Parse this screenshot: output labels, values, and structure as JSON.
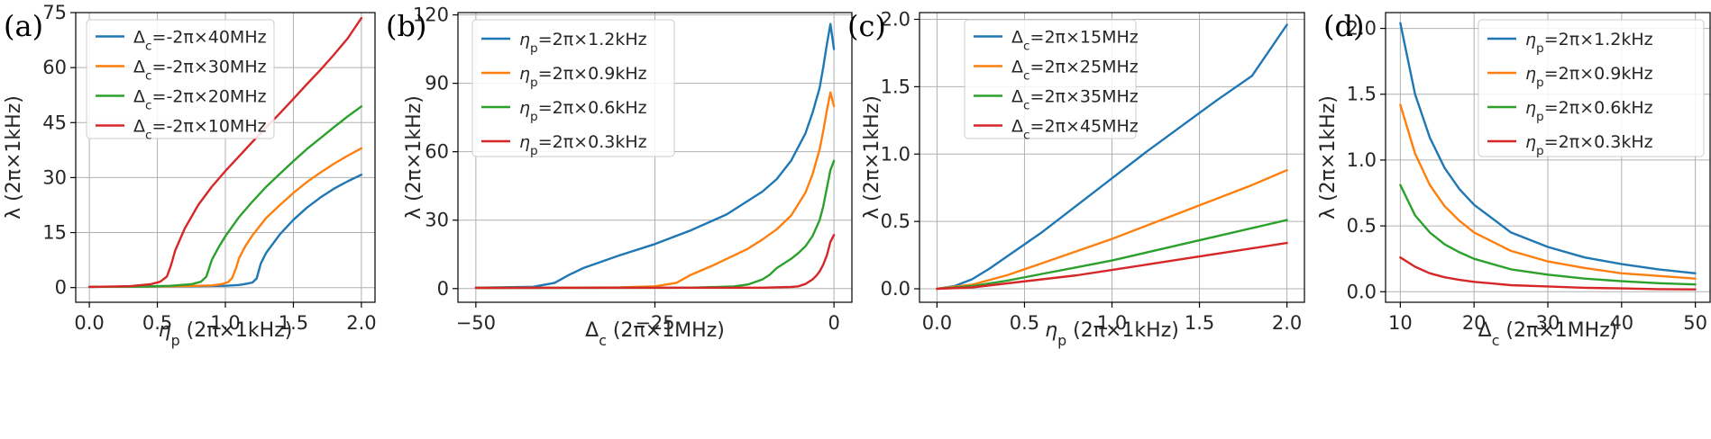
{
  "chart_data": [
    {
      "type": "line",
      "panel_label": "(a)",
      "xlabel_symbol": "η",
      "xlabel_sub": "p",
      "xlabel_rest": " (2π×1kHz)",
      "ylabel": "λ (2π×1kHz)",
      "xlim": [
        -0.1,
        2.1
      ],
      "ylim": [
        -4,
        75
      ],
      "xticks": [
        0.0,
        0.5,
        1.0,
        1.5,
        2.0
      ],
      "xtick_labels": [
        "0.0",
        "0.5",
        "1.0",
        "1.5",
        "2.0"
      ],
      "yticks": [
        0,
        15,
        30,
        45,
        60,
        75
      ],
      "ytick_labels": [
        "0",
        "15",
        "30",
        "45",
        "60",
        "75"
      ],
      "grid": true,
      "legend_position": "upper-left",
      "series": [
        {
          "name": "Δc=-2π×40MHz",
          "legend_symbol": "Δ",
          "legend_sub": "c",
          "legend_rest": "=-2π×40MHz",
          "color": "#1f77b4",
          "x": [
            0,
            0.4,
            0.8,
            1.0,
            1.1,
            1.15,
            1.2,
            1.23,
            1.26,
            1.3,
            1.4,
            1.5,
            1.6,
            1.7,
            1.8,
            1.9,
            2.0
          ],
          "y": [
            0.2,
            0.3,
            0.4,
            0.5,
            0.7,
            1.0,
            1.4,
            2.5,
            6.5,
            9.5,
            14.5,
            18.5,
            21.8,
            24.6,
            27.0,
            29.0,
            30.8
          ]
        },
        {
          "name": "Δc=-2π×30MHz",
          "legend_symbol": "Δ",
          "legend_sub": "c",
          "legend_rest": "=-2π×30MHz",
          "color": "#ff7f0e",
          "x": [
            0,
            0.4,
            0.7,
            0.9,
            0.97,
            1.02,
            1.05,
            1.08,
            1.1,
            1.15,
            1.2,
            1.3,
            1.4,
            1.5,
            1.6,
            1.7,
            1.8,
            1.9,
            2.0
          ],
          "y": [
            0.2,
            0.3,
            0.4,
            0.6,
            0.9,
            1.5,
            2.6,
            5.5,
            8.0,
            11.5,
            14.3,
            19.0,
            22.5,
            25.8,
            28.8,
            31.4,
            33.8,
            36.0,
            38.0
          ]
        },
        {
          "name": "Δc=-2π×20MHz",
          "legend_symbol": "Δ",
          "legend_sub": "c",
          "legend_rest": "=-2π×20MHz",
          "color": "#2ca02c",
          "x": [
            0,
            0.4,
            0.6,
            0.75,
            0.82,
            0.86,
            0.9,
            0.95,
            1.0,
            1.1,
            1.2,
            1.3,
            1.4,
            1.5,
            1.6,
            1.7,
            1.8,
            1.9,
            2.0
          ],
          "y": [
            0.2,
            0.3,
            0.5,
            0.9,
            1.6,
            3.0,
            7.5,
            11.0,
            14.0,
            19.2,
            23.5,
            27.5,
            31.0,
            34.5,
            37.8,
            40.8,
            43.8,
            46.7,
            49.4
          ]
        },
        {
          "name": "Δc=-2π×10MHz",
          "legend_symbol": "Δ",
          "legend_sub": "c",
          "legend_rest": "=-2π×10MHz",
          "color": "#d62728",
          "x": [
            0,
            0.3,
            0.45,
            0.52,
            0.57,
            0.6,
            0.63,
            0.7,
            0.8,
            0.9,
            1.0,
            1.1,
            1.2,
            1.3,
            1.4,
            1.5,
            1.6,
            1.7,
            1.8,
            1.9,
            2.0
          ],
          "y": [
            0.2,
            0.4,
            0.9,
            1.6,
            3.0,
            6.0,
            10.0,
            16.0,
            22.5,
            27.5,
            31.8,
            35.8,
            39.8,
            43.7,
            47.5,
            51.5,
            55.5,
            59.4,
            63.6,
            68.0,
            73.5
          ]
        }
      ]
    },
    {
      "type": "line",
      "panel_label": "(b)",
      "xlabel_symbol": "Δ",
      "xlabel_sub": "c",
      "xlabel_rest": " (2π×1MHz)",
      "ylabel": "λ (2π×1kHz)",
      "xlim": [
        -52.5,
        2.5
      ],
      "ylim": [
        -6,
        121
      ],
      "xticks": [
        -50,
        -25,
        0
      ],
      "xtick_labels": [
        "−50",
        "−25",
        "0"
      ],
      "yticks": [
        0,
        30,
        60,
        90,
        120
      ],
      "ytick_labels": [
        "0",
        "30",
        "60",
        "90",
        "120"
      ],
      "grid": true,
      "legend_position": "upper-left",
      "series": [
        {
          "name": "ηp=2π×1.2kHz",
          "legend_symbol": "η",
          "legend_sub": "p",
          "legend_rest": "=2π×1.2kHz",
          "color": "#1f77b4",
          "x": [
            -50,
            -42,
            -39,
            -37,
            -35,
            -30,
            -25,
            -20,
            -15,
            -10,
            -8,
            -6,
            -4,
            -3,
            -2,
            -1.5,
            -1,
            -0.5,
            0
          ],
          "y": [
            0.4,
            0.8,
            2.5,
            6.0,
            9.0,
            14.5,
            19.5,
            25.5,
            32.5,
            42.5,
            48.0,
            56.0,
            68.0,
            77.0,
            88.0,
            97.0,
            107.0,
            116.0,
            105.0
          ]
        },
        {
          "name": "ηp=2π×0.9kHz",
          "legend_symbol": "η",
          "legend_sub": "p",
          "legend_rest": "=2π×0.9kHz",
          "color": "#ff7f0e",
          "x": [
            -50,
            -30,
            -25,
            -22,
            -20,
            -17,
            -15,
            -12,
            -10,
            -8,
            -6,
            -4,
            -3,
            -2,
            -1.5,
            -1,
            -0.5,
            0
          ],
          "y": [
            0.3,
            0.5,
            1.0,
            2.5,
            6.0,
            10.0,
            13.0,
            17.5,
            21.5,
            26.0,
            32.0,
            42.0,
            50.0,
            61.0,
            69.0,
            78.0,
            86.0,
            80.0
          ]
        },
        {
          "name": "ηp=2π×0.6kHz",
          "legend_symbol": "η",
          "legend_sub": "p",
          "legend_rest": "=2π×0.6kHz",
          "color": "#2ca02c",
          "x": [
            -50,
            -20,
            -14,
            -12,
            -10,
            -9,
            -8,
            -6,
            -5,
            -4,
            -3,
            -2,
            -1.5,
            -1,
            -0.5,
            0
          ],
          "y": [
            0.3,
            0.4,
            0.9,
            1.8,
            4.0,
            6.0,
            9.0,
            13.0,
            15.5,
            18.5,
            23.0,
            30.0,
            36.0,
            44.0,
            52.0,
            56.0
          ]
        },
        {
          "name": "ηp=2π×0.3kHz",
          "legend_symbol": "η",
          "legend_sub": "p",
          "legend_rest": "=2π×0.3kHz",
          "color": "#d62728",
          "x": [
            -50,
            -10,
            -6,
            -5,
            -4,
            -3,
            -2.5,
            -2,
            -1.5,
            -1,
            -0.5,
            0
          ],
          "y": [
            0.3,
            0.4,
            0.7,
            1.0,
            2.0,
            4.0,
            5.5,
            7.5,
            10.5,
            14.5,
            20.5,
            23.5
          ]
        }
      ]
    },
    {
      "type": "line",
      "panel_label": "(c)",
      "xlabel_symbol": "η",
      "xlabel_sub": "p",
      "xlabel_rest": " (2π×1kHz)",
      "ylabel": "λ (2π×1kHz)",
      "xlim": [
        -0.1,
        2.1
      ],
      "ylim": [
        -0.1,
        2.05
      ],
      "xticks": [
        0.0,
        0.5,
        1.0,
        1.5,
        2.0
      ],
      "xtick_labels": [
        "0.0",
        "0.5",
        "1.0",
        "1.5",
        "2.0"
      ],
      "yticks": [
        0.0,
        0.5,
        1.0,
        1.5,
        2.0
      ],
      "ytick_labels": [
        "0.0",
        "0.5",
        "1.0",
        "1.5",
        "2.0"
      ],
      "grid": true,
      "legend_position": "upper-left",
      "series": [
        {
          "name": "Δc=2π×15MHz",
          "legend_symbol": "Δ",
          "legend_sub": "c",
          "legend_rest": "=2π×15MHz",
          "color": "#1f77b4",
          "x": [
            0,
            0.1,
            0.2,
            0.3,
            0.4,
            0.5,
            0.6,
            0.8,
            1.0,
            1.2,
            1.4,
            1.6,
            1.8,
            2.0
          ],
          "y": [
            0.0,
            0.02,
            0.07,
            0.15,
            0.24,
            0.33,
            0.42,
            0.62,
            0.82,
            1.02,
            1.21,
            1.4,
            1.58,
            1.96
          ]
        },
        {
          "name": "Δc=2π×25MHz",
          "legend_symbol": "Δ",
          "legend_sub": "c",
          "legend_rest": "=2π×25MHz",
          "color": "#ff7f0e",
          "x": [
            0,
            0.2,
            0.4,
            0.6,
            0.8,
            1.0,
            1.2,
            1.4,
            1.6,
            1.8,
            2.0
          ],
          "y": [
            0.0,
            0.03,
            0.1,
            0.19,
            0.28,
            0.37,
            0.47,
            0.57,
            0.67,
            0.77,
            0.88
          ]
        },
        {
          "name": "Δc=2π×35MHz",
          "legend_symbol": "Δ",
          "legend_sub": "c",
          "legend_rest": "=2π×35MHz",
          "color": "#2ca02c",
          "x": [
            0,
            0.2,
            0.4,
            0.6,
            0.8,
            1.0,
            1.2,
            1.4,
            1.6,
            1.8,
            2.0
          ],
          "y": [
            0.0,
            0.02,
            0.06,
            0.11,
            0.16,
            0.21,
            0.27,
            0.33,
            0.39,
            0.45,
            0.51
          ]
        },
        {
          "name": "Δc=2π×45MHz",
          "legend_symbol": "Δ",
          "legend_sub": "c",
          "legend_rest": "=2π×45MHz",
          "color": "#d62728",
          "x": [
            0,
            0.2,
            0.4,
            0.6,
            0.8,
            1.0,
            1.2,
            1.4,
            1.6,
            1.8,
            2.0
          ],
          "y": [
            0.0,
            0.01,
            0.04,
            0.07,
            0.1,
            0.14,
            0.18,
            0.22,
            0.26,
            0.3,
            0.34
          ]
        }
      ]
    },
    {
      "type": "line",
      "panel_label": "(d)",
      "xlabel_symbol": "Δ",
      "xlabel_sub": "c",
      "xlabel_rest": " (2π×1MHz)",
      "ylabel": "λ (2π×1kHz)",
      "xlim": [
        8,
        52
      ],
      "ylim": [
        -0.08,
        2.12
      ],
      "xticks": [
        10,
        20,
        30,
        40,
        50
      ],
      "xtick_labels": [
        "10",
        "20",
        "30",
        "40",
        "50"
      ],
      "yticks": [
        0.0,
        0.5,
        1.0,
        1.5,
        2.0
      ],
      "ytick_labels": [
        "0.0",
        "0.5",
        "1.0",
        "1.5",
        "2.0"
      ],
      "grid": true,
      "legend_position": "upper-right",
      "series": [
        {
          "name": "ηp=2π×1.2kHz",
          "legend_symbol": "η",
          "legend_sub": "p",
          "legend_rest": "=2π×1.2kHz",
          "color": "#1f77b4",
          "x": [
            10,
            12,
            14,
            16,
            18,
            20,
            25,
            30,
            35,
            40,
            45,
            50
          ],
          "y": [
            2.04,
            1.5,
            1.17,
            0.94,
            0.78,
            0.66,
            0.45,
            0.34,
            0.26,
            0.21,
            0.17,
            0.14
          ]
        },
        {
          "name": "ηp=2π×0.9kHz",
          "legend_symbol": "η",
          "legend_sub": "p",
          "legend_rest": "=2π×0.9kHz",
          "color": "#ff7f0e",
          "x": [
            10,
            12,
            14,
            16,
            18,
            20,
            25,
            30,
            35,
            40,
            45,
            50
          ],
          "y": [
            1.42,
            1.05,
            0.81,
            0.65,
            0.54,
            0.45,
            0.31,
            0.23,
            0.18,
            0.14,
            0.12,
            0.1
          ]
        },
        {
          "name": "ηp=2π×0.6kHz",
          "legend_symbol": "η",
          "legend_sub": "p",
          "legend_rest": "=2π×0.6kHz",
          "color": "#2ca02c",
          "x": [
            10,
            12,
            14,
            16,
            18,
            20,
            25,
            30,
            35,
            40,
            45,
            50
          ],
          "y": [
            0.81,
            0.58,
            0.45,
            0.36,
            0.3,
            0.25,
            0.17,
            0.13,
            0.1,
            0.08,
            0.065,
            0.055
          ]
        },
        {
          "name": "ηp=2π×0.3kHz",
          "legend_symbol": "η",
          "legend_sub": "p",
          "legend_rest": "=2π×0.3kHz",
          "color": "#d62728",
          "x": [
            10,
            12,
            14,
            16,
            18,
            20,
            25,
            30,
            35,
            40,
            45,
            50
          ],
          "y": [
            0.26,
            0.19,
            0.14,
            0.11,
            0.09,
            0.075,
            0.05,
            0.04,
            0.03,
            0.025,
            0.02,
            0.018
          ]
        }
      ]
    }
  ]
}
